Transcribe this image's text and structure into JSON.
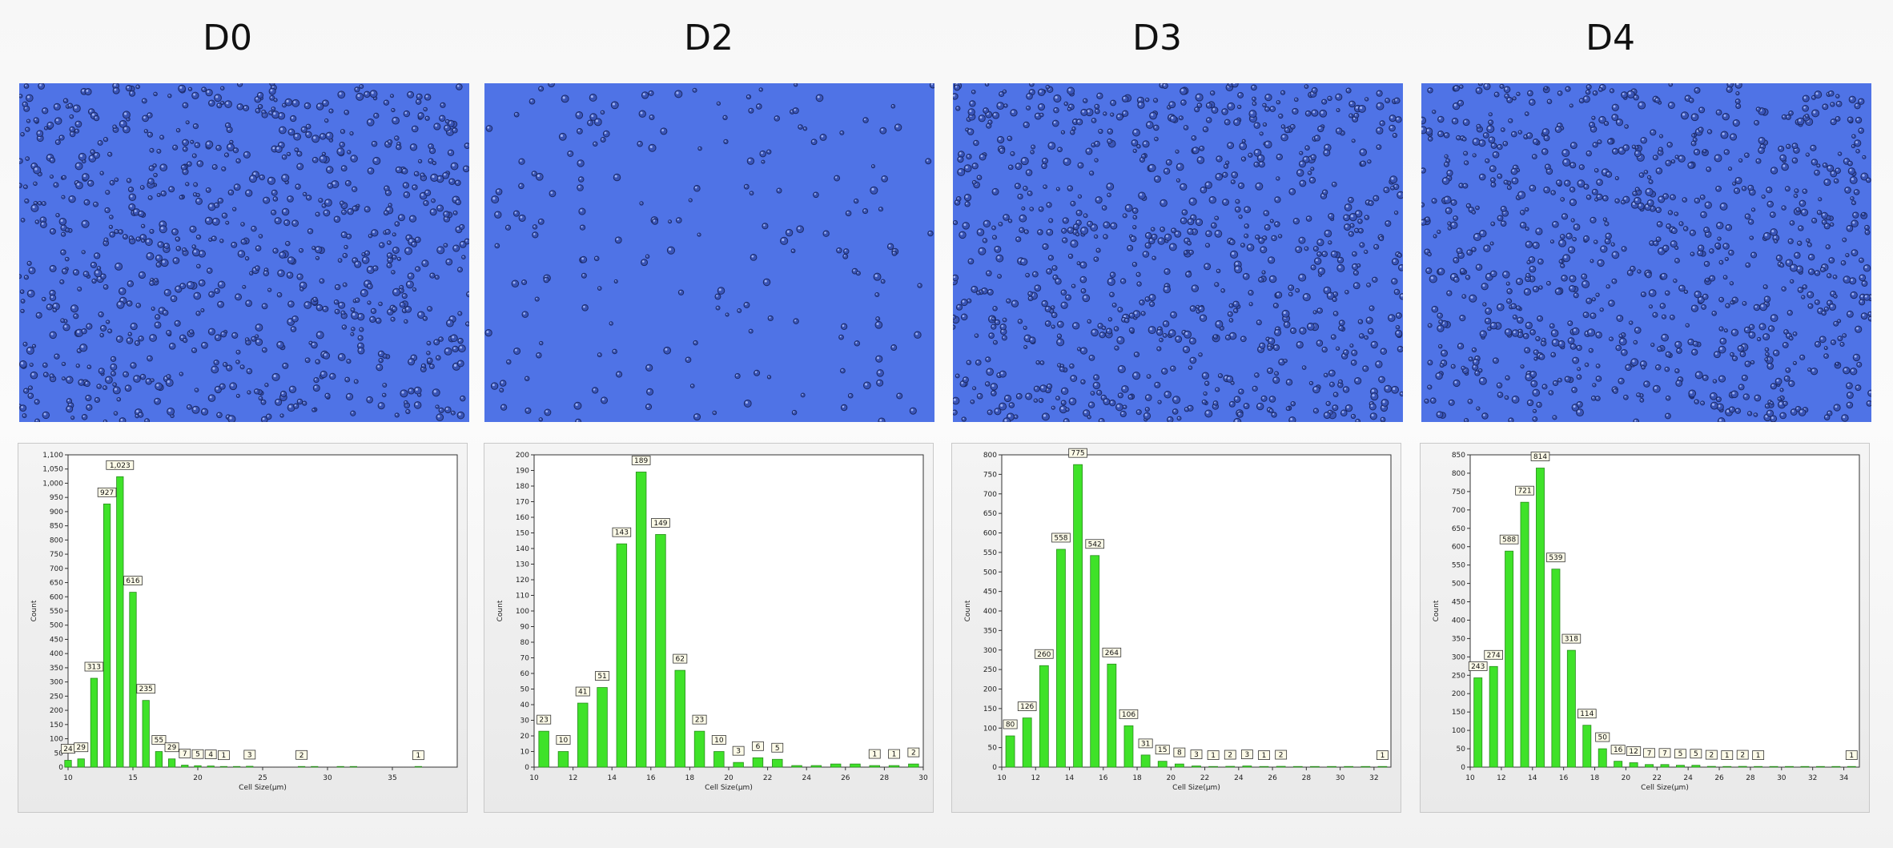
{
  "panels": [
    {
      "title": "D0",
      "micro_density": 0.95,
      "chart_data": {
        "type": "bar",
        "title": "",
        "xlabel": "Cell Size(μm)",
        "ylabel": "Count",
        "xlim": [
          10,
          40
        ],
        "ylim": [
          0,
          1100
        ],
        "yticks": [
          0,
          50,
          100,
          150,
          200,
          250,
          300,
          350,
          400,
          450,
          500,
          550,
          600,
          650,
          700,
          750,
          800,
          850,
          900,
          950,
          1000,
          1050,
          1100
        ],
        "xticks": [
          10,
          15,
          20,
          25,
          30,
          35
        ],
        "x": [
          10,
          11,
          12,
          13,
          14,
          15,
          16,
          17,
          18,
          19,
          20,
          21,
          22,
          23,
          24,
          28,
          29,
          31,
          32,
          37
        ],
        "values": [
          24,
          29,
          313,
          927,
          1023,
          616,
          235,
          55,
          29,
          7,
          5,
          4,
          1,
          1,
          3,
          2,
          1,
          1,
          1,
          1
        ],
        "data_labels": [
          "24",
          "29",
          "313",
          "927",
          "1,023",
          "616",
          "235",
          "55",
          "29",
          "7",
          "5",
          "4",
          "1",
          "1",
          "3",
          "2",
          "1",
          "1",
          "1",
          "1"
        ],
        "labels_shown": [
          true,
          true,
          true,
          true,
          true,
          true,
          true,
          true,
          true,
          true,
          true,
          true,
          true,
          false,
          true,
          true,
          false,
          false,
          false,
          true
        ],
        "legend": "none",
        "grid": false
      }
    },
    {
      "title": "D2",
      "micro_density": 0.22,
      "chart_data": {
        "type": "bar",
        "title": "",
        "xlabel": "Cell Size(μm)",
        "ylabel": "Count",
        "xlim": [
          10,
          30
        ],
        "ylim": [
          0,
          200
        ],
        "yticks": [
          0,
          10,
          20,
          30,
          40,
          50,
          60,
          70,
          80,
          90,
          100,
          110,
          120,
          130,
          140,
          150,
          160,
          170,
          180,
          190,
          200
        ],
        "xticks": [
          10,
          12,
          14,
          16,
          18,
          20,
          22,
          24,
          26,
          28,
          30
        ],
        "x": [
          10.5,
          11.5,
          12.5,
          13.5,
          14.5,
          15.5,
          16.5,
          17.5,
          18.5,
          19.5,
          20.5,
          21.5,
          22.5,
          23.5,
          24.5,
          25.5,
          26.5,
          27.5,
          28.5,
          29.5
        ],
        "values": [
          23,
          10,
          41,
          51,
          143,
          189,
          149,
          62,
          23,
          10,
          3,
          6,
          5,
          1,
          1,
          2,
          2,
          1,
          1,
          2
        ],
        "data_labels": [
          "23",
          "10",
          "41",
          "51",
          "143",
          "189",
          "149",
          "62",
          "23",
          "10",
          "3",
          "6",
          "5",
          "1",
          "1",
          "2",
          "2",
          "1",
          "1",
          "2"
        ],
        "labels_shown": [
          true,
          true,
          true,
          true,
          true,
          true,
          true,
          true,
          true,
          true,
          true,
          true,
          true,
          false,
          false,
          false,
          false,
          true,
          true,
          true
        ],
        "legend": "none",
        "grid": false
      }
    },
    {
      "title": "D3",
      "micro_density": 0.95,
      "chart_data": {
        "type": "bar",
        "title": "",
        "xlabel": "Cell Size(μm)",
        "ylabel": "Count",
        "xlim": [
          10,
          33
        ],
        "ylim": [
          0,
          800
        ],
        "yticks": [
          0,
          50,
          100,
          150,
          200,
          250,
          300,
          350,
          400,
          450,
          500,
          550,
          600,
          650,
          700,
          750,
          800
        ],
        "xticks": [
          10,
          12,
          14,
          16,
          18,
          20,
          22,
          24,
          26,
          28,
          30,
          32
        ],
        "x": [
          10.5,
          11.5,
          12.5,
          13.5,
          14.5,
          15.5,
          16.5,
          17.5,
          18.5,
          19.5,
          20.5,
          21.5,
          22.5,
          23.5,
          24.5,
          25.5,
          26.5,
          27.5,
          28.5,
          29.5,
          30.5,
          31.5,
          32.5
        ],
        "values": [
          80,
          126,
          260,
          558,
          775,
          542,
          264,
          106,
          31,
          15,
          8,
          3,
          1,
          2,
          3,
          1,
          2,
          1,
          1,
          1,
          1,
          1,
          1
        ],
        "data_labels": [
          "80",
          "126",
          "260",
          "558",
          "775",
          "542",
          "264",
          "106",
          "31",
          "15",
          "8",
          "3",
          "1",
          "2",
          "3",
          "1",
          "2",
          "1",
          "1",
          "1",
          "1",
          "1",
          "1"
        ],
        "labels_shown": [
          true,
          true,
          true,
          true,
          true,
          true,
          true,
          true,
          true,
          true,
          true,
          true,
          true,
          true,
          true,
          true,
          true,
          false,
          false,
          false,
          false,
          false,
          true
        ],
        "legend": "none",
        "grid": false
      }
    },
    {
      "title": "D4",
      "micro_density": 1.0,
      "chart_data": {
        "type": "bar",
        "title": "",
        "xlabel": "Cell Size(μm)",
        "ylabel": "Count",
        "xlim": [
          10,
          35
        ],
        "ylim": [
          0,
          850
        ],
        "yticks": [
          0,
          50,
          100,
          150,
          200,
          250,
          300,
          350,
          400,
          450,
          500,
          550,
          600,
          650,
          700,
          750,
          800,
          850
        ],
        "xticks": [
          10,
          12,
          14,
          16,
          18,
          20,
          22,
          24,
          26,
          28,
          30,
          32,
          34
        ],
        "x": [
          10.5,
          11.5,
          12.5,
          13.5,
          14.5,
          15.5,
          16.5,
          17.5,
          18.5,
          19.5,
          20.5,
          21.5,
          22.5,
          23.5,
          24.5,
          25.5,
          26.5,
          27.5,
          28.5,
          29.5,
          30.5,
          31.5,
          32.5,
          33.5,
          34.5
        ],
        "values": [
          243,
          274,
          588,
          721,
          814,
          539,
          318,
          114,
          50,
          16,
          12,
          7,
          7,
          5,
          5,
          2,
          1,
          2,
          1,
          1,
          1,
          1,
          1,
          1,
          1
        ],
        "data_labels": [
          "243",
          "274",
          "588",
          "721",
          "814",
          "539",
          "318",
          "114",
          "50",
          "16",
          "12",
          "7",
          "7",
          "5",
          "5",
          "2",
          "1",
          "2",
          "1",
          "1",
          "1",
          "1",
          "1",
          "1",
          "1"
        ],
        "labels_shown": [
          true,
          true,
          true,
          true,
          true,
          true,
          true,
          true,
          true,
          true,
          true,
          true,
          true,
          true,
          true,
          true,
          true,
          true,
          true,
          false,
          false,
          false,
          false,
          false,
          true
        ],
        "legend": "none",
        "grid": false
      }
    }
  ],
  "colors": {
    "bar_fill": "#3fe229",
    "bar_stroke": "#2a8c1e",
    "micro_bg": "#4f73e6",
    "label_bg": "#fdfbe8"
  }
}
